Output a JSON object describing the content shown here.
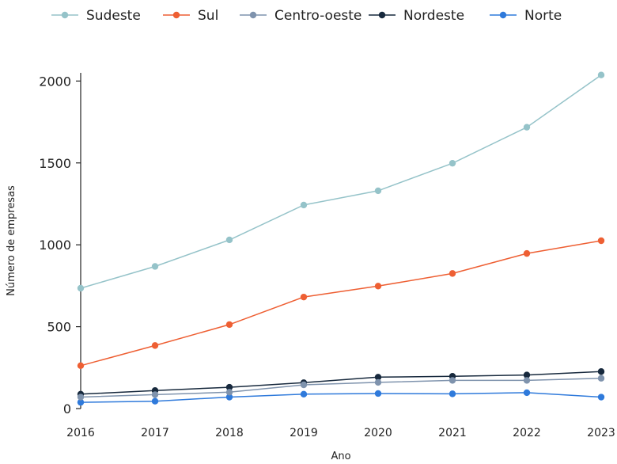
{
  "chart_data": {
    "type": "line",
    "title": "",
    "xlabel": "Ano",
    "ylabel": "Número de empresas",
    "x": [
      2016,
      2017,
      2018,
      2019,
      2020,
      2021,
      2022,
      2023
    ],
    "ylim": [
      0,
      2050
    ],
    "yticks": [
      0,
      500,
      1000,
      1500,
      2000
    ],
    "grid": false,
    "legend_position": "top",
    "series": [
      {
        "name": "Sudeste",
        "color": "#95c3c9",
        "values": [
          735,
          868,
          1030,
          1243,
          1330,
          1498,
          1718,
          2037
        ]
      },
      {
        "name": "Sul",
        "color": "#ee5f33",
        "values": [
          262,
          385,
          513,
          681,
          748,
          825,
          947,
          1025
        ]
      },
      {
        "name": "Centro-oeste",
        "color": "#7f93ad",
        "values": [
          70,
          85,
          100,
          145,
          160,
          172,
          172,
          185
        ]
      },
      {
        "name": "Nordeste",
        "color": "#17293d",
        "values": [
          88,
          110,
          130,
          158,
          192,
          197,
          205,
          226
        ]
      },
      {
        "name": "Norte",
        "color": "#2f7adb",
        "values": [
          38,
          45,
          70,
          88,
          92,
          90,
          97,
          70
        ]
      }
    ]
  }
}
